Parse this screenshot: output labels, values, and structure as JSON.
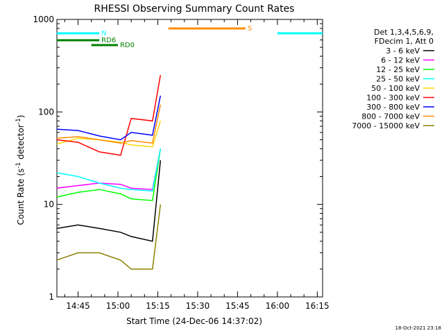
{
  "chart_data": {
    "type": "line",
    "title": "RHESSI Observing Summary Count Rates",
    "xlabel": "Start Time (24-Dec-06 14:37:02)",
    "ylabel": "Count Rate (s-1 detector-1)",
    "ylabel_parts": {
      "base": "Count Rate (s",
      "exp1": "-1",
      "mid": " detector",
      "exp2": "-1",
      "end": ")"
    },
    "yscale": "log",
    "ylim": [
      1,
      1000
    ],
    "xlim": [
      "14:37:02",
      "16:17:00"
    ],
    "x_ticks": [
      "14:45",
      "15:00",
      "15:15",
      "15:30",
      "15:45",
      "16:00",
      "16:15"
    ],
    "y_ticks": [
      "1",
      "10",
      "100",
      "1000"
    ],
    "legend_header": [
      "Det 1,3,4,5,6,9,",
      "FDecim 1, Att 0"
    ],
    "legend_position": "right",
    "series": [
      {
        "name": "3 - 6 keV",
        "color": "#000000",
        "x": [
          "14:37",
          "14:45",
          "14:53",
          "15:01",
          "15:05",
          "15:13",
          "15:16"
        ],
        "y": [
          5.5,
          6.0,
          5.5,
          5.0,
          4.5,
          4.0,
          30
        ]
      },
      {
        "name": "6 - 12 keV",
        "color": "#ff00ff",
        "x": [
          "14:37",
          "14:45",
          "14:53",
          "15:01",
          "15:05",
          "15:13",
          "15:16"
        ],
        "y": [
          15,
          16,
          17,
          16.5,
          15,
          14.5,
          40
        ]
      },
      {
        "name": "12 - 25 keV",
        "color": "#00ff00",
        "x": [
          "14:37",
          "14:45",
          "14:53",
          "15:01",
          "15:05",
          "15:13",
          "15:16"
        ],
        "y": [
          12,
          13.5,
          14.5,
          13,
          11.5,
          11,
          40
        ]
      },
      {
        "name": "25 - 50 keV",
        "color": "#00ffff",
        "x": [
          "14:37",
          "14:45",
          "14:53",
          "15:01",
          "15:05",
          "15:13",
          "15:16"
        ],
        "y": [
          22,
          20,
          17,
          15,
          14.5,
          14,
          40
        ]
      },
      {
        "name": "50 - 100 keV",
        "color": "#ffd700",
        "x": [
          "14:37",
          "14:45",
          "14:53",
          "15:01",
          "15:05",
          "15:13",
          "15:16"
        ],
        "y": [
          45,
          52,
          50,
          47,
          44,
          42,
          80
        ]
      },
      {
        "name": "100 - 300 keV",
        "color": "#ff0000",
        "x": [
          "14:37",
          "14:45",
          "14:53",
          "15:01",
          "15:05",
          "15:13",
          "15:16"
        ],
        "y": [
          50,
          47,
          37,
          34,
          85,
          80,
          250
        ]
      },
      {
        "name": "300 - 800 keV",
        "color": "#0000ff",
        "x": [
          "14:37",
          "14:45",
          "14:53",
          "15:01",
          "15:05",
          "15:13",
          "15:16"
        ],
        "y": [
          65,
          63,
          55,
          50,
          60,
          56,
          150
        ]
      },
      {
        "name": "800 - 7000 keV",
        "color": "#ff8c00",
        "x": [
          "14:37",
          "14:45",
          "14:53",
          "15:01",
          "15:05",
          "15:13",
          "15:16"
        ],
        "y": [
          52,
          54,
          50,
          46,
          49,
          46,
          120
        ]
      },
      {
        "name": "7000 - 15000 keV",
        "color": "#8b8000",
        "x": [
          "14:37",
          "14:45",
          "14:53",
          "15:01",
          "15:05",
          "15:13",
          "15:16"
        ],
        "y": [
          2.5,
          3.0,
          3.0,
          2.5,
          2.0,
          2.0,
          10
        ]
      }
    ],
    "flags": [
      {
        "label": "N",
        "color": "#00ffff",
        "spans": [
          [
            "14:37",
            "14:53"
          ],
          [
            "16:00",
            "16:17"
          ]
        ]
      },
      {
        "label": "RD0",
        "color": "#008000",
        "spans": [
          [
            "14:50",
            "15:00"
          ]
        ]
      },
      {
        "label": "RD6",
        "color": "#008000",
        "spans": [
          [
            "14:37",
            "14:53"
          ]
        ]
      },
      {
        "label": "S",
        "color": "#ff8c00",
        "spans": [
          [
            "15:19",
            "15:48"
          ]
        ]
      }
    ],
    "grid": false
  },
  "timestamp": "18-Oct-2021 23:18"
}
